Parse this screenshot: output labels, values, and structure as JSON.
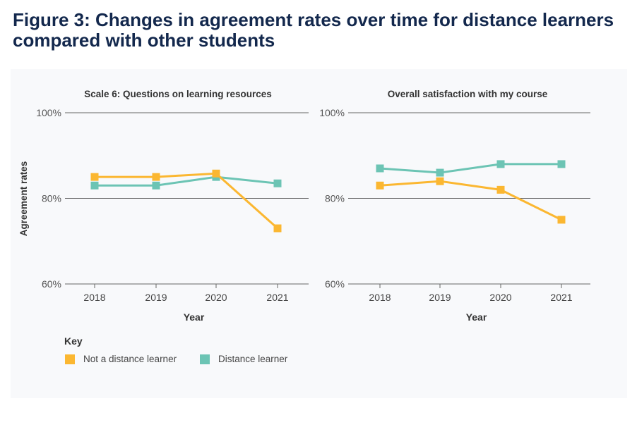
{
  "title": "Figure 3: Changes in agreement rates over time for distance learners compared with other students",
  "colors": {
    "not_distance": "#fbb731",
    "distance": "#6cc4b4"
  },
  "key": {
    "title": "Key",
    "items": [
      "Not a distance learner",
      "Distance learner"
    ]
  },
  "chart_data": [
    {
      "type": "line",
      "title": "Scale 6: Questions on learning resources",
      "xlabel": "Year",
      "ylabel": "Agreement rates",
      "categories": [
        "2018",
        "2019",
        "2020",
        "2021"
      ],
      "yticks": [
        "60%",
        "80%",
        "100%"
      ],
      "ylim": [
        60,
        100
      ],
      "series": [
        {
          "name": "Not a distance learner",
          "values": [
            85,
            85,
            85.8,
            73
          ]
        },
        {
          "name": "Distance learner",
          "values": [
            83,
            83,
            85,
            83.5
          ]
        }
      ]
    },
    {
      "type": "line",
      "title": "Overall satisfaction with my course",
      "xlabel": "Year",
      "ylabel": "",
      "categories": [
        "2018",
        "2019",
        "2020",
        "2021"
      ],
      "yticks": [
        "60%",
        "80%",
        "100%"
      ],
      "ylim": [
        60,
        100
      ],
      "series": [
        {
          "name": "Not a distance learner",
          "values": [
            83,
            84,
            82,
            75
          ]
        },
        {
          "name": "Distance learner",
          "values": [
            87,
            86,
            88,
            88
          ]
        }
      ]
    }
  ]
}
